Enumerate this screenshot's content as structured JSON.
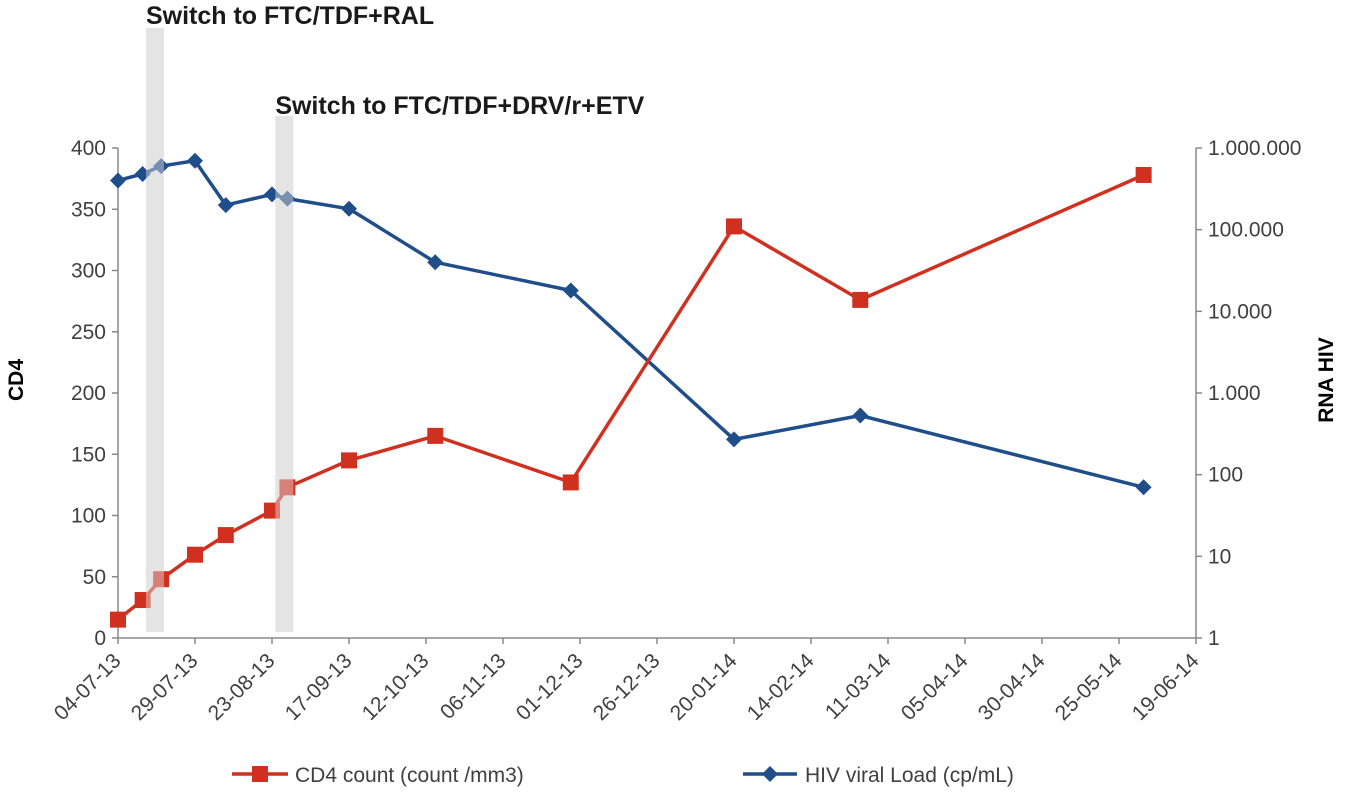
{
  "chart_data": {
    "type": "line",
    "title": "",
    "x_tick_labels": [
      "04-07-13",
      "29-07-13",
      "23-08-13",
      "17-09-13",
      "12-10-13",
      "06-11-13",
      "01-12-13",
      "26-12-13",
      "20-01-14",
      "14-02-14",
      "11-03-14",
      "05-04-14",
      "30-04-14",
      "25-05-14",
      "19-06-14"
    ],
    "xlim": [
      "04-07-13",
      "19-06-14"
    ],
    "left_axis": {
      "label": "CD4",
      "ylim": [
        0,
        400
      ],
      "ticks": [
        "0",
        "50",
        "100",
        "150",
        "200",
        "250",
        "300",
        "350",
        "400"
      ]
    },
    "right_axis": {
      "label": "RNA  HIV",
      "scale": "log",
      "ylim": [
        1,
        1000000
      ],
      "ticks": [
        "1",
        "10",
        "100",
        "1.000",
        "10.000",
        "100.000",
        "1.000.000"
      ]
    },
    "series": [
      {
        "name": "CD4 count (count /mm3)",
        "axis": "left",
        "color": "#d0301f",
        "marker": "square",
        "x": [
          "04-07-13",
          "12-07-13",
          "18-07-13",
          "29-07-13",
          "08-08-13",
          "23-08-13",
          "28-08-13",
          "17-09-13",
          "15-10-13",
          "28-11-13",
          "20-01-14",
          "02-03-14",
          "02-06-14"
        ],
        "values": [
          15,
          31,
          48,
          68,
          84,
          104,
          123,
          145,
          165,
          127,
          336,
          276,
          378
        ]
      },
      {
        "name": "HIV viral Load (cp/mL)",
        "axis": "right",
        "color": "#1f4e8a",
        "marker": "diamond",
        "x": [
          "04-07-13",
          "12-07-13",
          "18-07-13",
          "29-07-13",
          "08-08-13",
          "23-08-13",
          "28-08-13",
          "17-09-13",
          "15-10-13",
          "28-11-13",
          "20-01-14",
          "02-03-14",
          "02-06-14"
        ],
        "values": [
          400000,
          480000,
          600000,
          700000,
          200000,
          270000,
          240000,
          180000,
          40000,
          18000,
          270,
          530,
          70
        ]
      }
    ],
    "annotations": [
      {
        "text": "Switch to FTC/TDF+RAL",
        "date": "16-07-13"
      },
      {
        "text": "Switch to FTC/TDF+DRV/r+ETV",
        "date": "27-08-13"
      }
    ],
    "legend_position": "bottom",
    "grid": false
  }
}
